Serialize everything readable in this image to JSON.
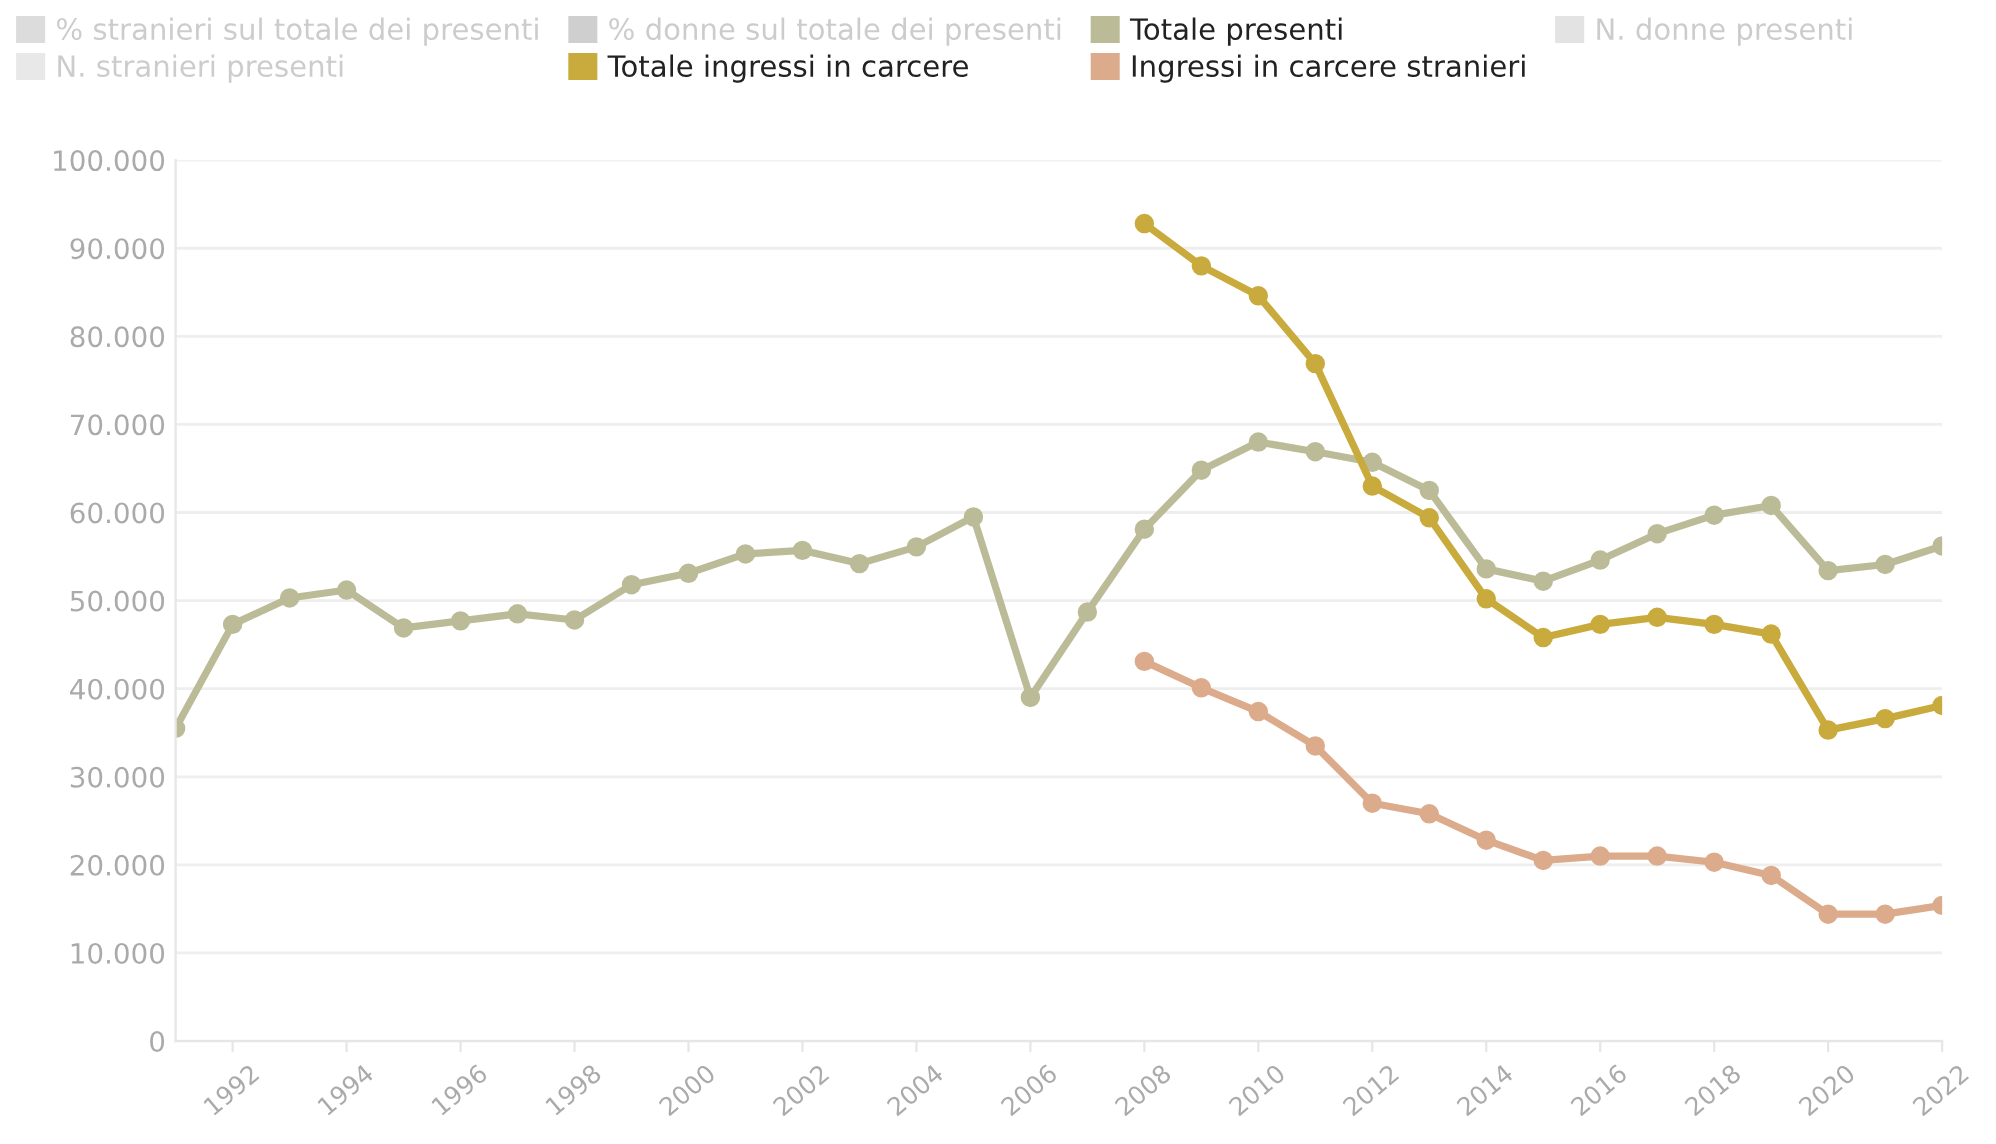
{
  "chart_data": {
    "type": "line",
    "x": [
      1991,
      1992,
      1993,
      1994,
      1995,
      1996,
      1997,
      1998,
      1999,
      2000,
      2001,
      2002,
      2003,
      2004,
      2005,
      2006,
      2007,
      2008,
      2009,
      2010,
      2011,
      2012,
      2013,
      2014,
      2015,
      2016,
      2017,
      2018,
      2019,
      2020,
      2021,
      2022
    ],
    "series": [
      {
        "name": "% stranieri sul totale dei presenti",
        "color": "#dcdcdc",
        "values": [
          null,
          null,
          null,
          null,
          null,
          null,
          null,
          null,
          null,
          null,
          null,
          null,
          null,
          null,
          null,
          null,
          null,
          null,
          null,
          null,
          null,
          null,
          null,
          null,
          null,
          null,
          null,
          null,
          null,
          null,
          null,
          null
        ]
      },
      {
        "name": "% donne sul totale dei presenti",
        "color": "#cfcfcf",
        "values": [
          null,
          null,
          null,
          null,
          null,
          null,
          null,
          null,
          null,
          null,
          null,
          null,
          null,
          null,
          null,
          null,
          null,
          null,
          null,
          null,
          null,
          null,
          null,
          null,
          null,
          null,
          null,
          null,
          null,
          null,
          null,
          null
        ]
      },
      {
        "name": "Totale presenti",
        "color": "#bcbb98",
        "values": [
          35500,
          47300,
          50300,
          51200,
          46900,
          47700,
          48500,
          47800,
          51800,
          53100,
          55300,
          55700,
          54200,
          56100,
          59500,
          39000,
          48700,
          58100,
          64800,
          68000,
          66900,
          65700,
          62500,
          53600,
          52200,
          54600,
          57600,
          59700,
          60800,
          53400,
          54100,
          56200
        ]
      },
      {
        "name": "N. donne presenti",
        "color": "#e3e3e3",
        "values": [
          null,
          null,
          null,
          null,
          null,
          null,
          null,
          null,
          null,
          null,
          null,
          null,
          null,
          null,
          null,
          null,
          null,
          null,
          null,
          null,
          null,
          null,
          null,
          null,
          null,
          null,
          null,
          null,
          null,
          null,
          null,
          null
        ]
      },
      {
        "name": "N. stranieri presenti",
        "color": "#e8e8e8",
        "values": [
          null,
          null,
          null,
          null,
          null,
          null,
          null,
          null,
          null,
          null,
          null,
          null,
          null,
          null,
          null,
          null,
          null,
          null,
          null,
          null,
          null,
          null,
          null,
          null,
          null,
          null,
          null,
          null,
          null,
          null,
          null,
          null
        ]
      },
      {
        "name": "Totale ingressi in carcere",
        "color": "#c9aa3c",
        "values": [
          null,
          null,
          null,
          null,
          null,
          null,
          null,
          null,
          null,
          null,
          null,
          null,
          null,
          null,
          null,
          null,
          null,
          92800,
          88000,
          84600,
          76900,
          63000,
          59400,
          50200,
          45800,
          47300,
          48100,
          47300,
          46200,
          35300,
          36600,
          38100
        ]
      },
      {
        "name": "Ingressi in carcere stranieri",
        "color": "#dcab8c",
        "values": [
          null,
          null,
          null,
          null,
          null,
          null,
          null,
          null,
          null,
          null,
          null,
          null,
          null,
          null,
          null,
          null,
          null,
          43100,
          40100,
          37400,
          33500,
          27000,
          25800,
          22800,
          20500,
          21000,
          21000,
          20300,
          18800,
          14400,
          14400,
          15400
        ]
      }
    ],
    "xlim": [
      1991,
      2022
    ],
    "xticks": [
      1992,
      1994,
      1996,
      1998,
      2000,
      2002,
      2004,
      2006,
      2008,
      2010,
      2012,
      2014,
      2016,
      2018,
      2020,
      2022
    ],
    "ylim": [
      0,
      100000
    ],
    "yticks": [
      0,
      {
        "value": 10000,
        "label": "10.000"
      },
      {
        "value": 20000,
        "label": "20.000"
      },
      {
        "value": 30000,
        "label": "30.000"
      },
      {
        "value": 40000,
        "label": "40.000"
      },
      {
        "value": 50000,
        "label": "50.000"
      },
      {
        "value": 60000,
        "label": "60.000"
      },
      {
        "value": 70000,
        "label": "70.000"
      },
      {
        "value": 80000,
        "label": "80.000"
      },
      {
        "value": 90000,
        "label": "90.000"
      },
      {
        "value": 100000,
        "label": "100.000"
      }
    ],
    "grid": "y",
    "legend": "top left",
    "marker": "circle",
    "line_style": "solid"
  }
}
